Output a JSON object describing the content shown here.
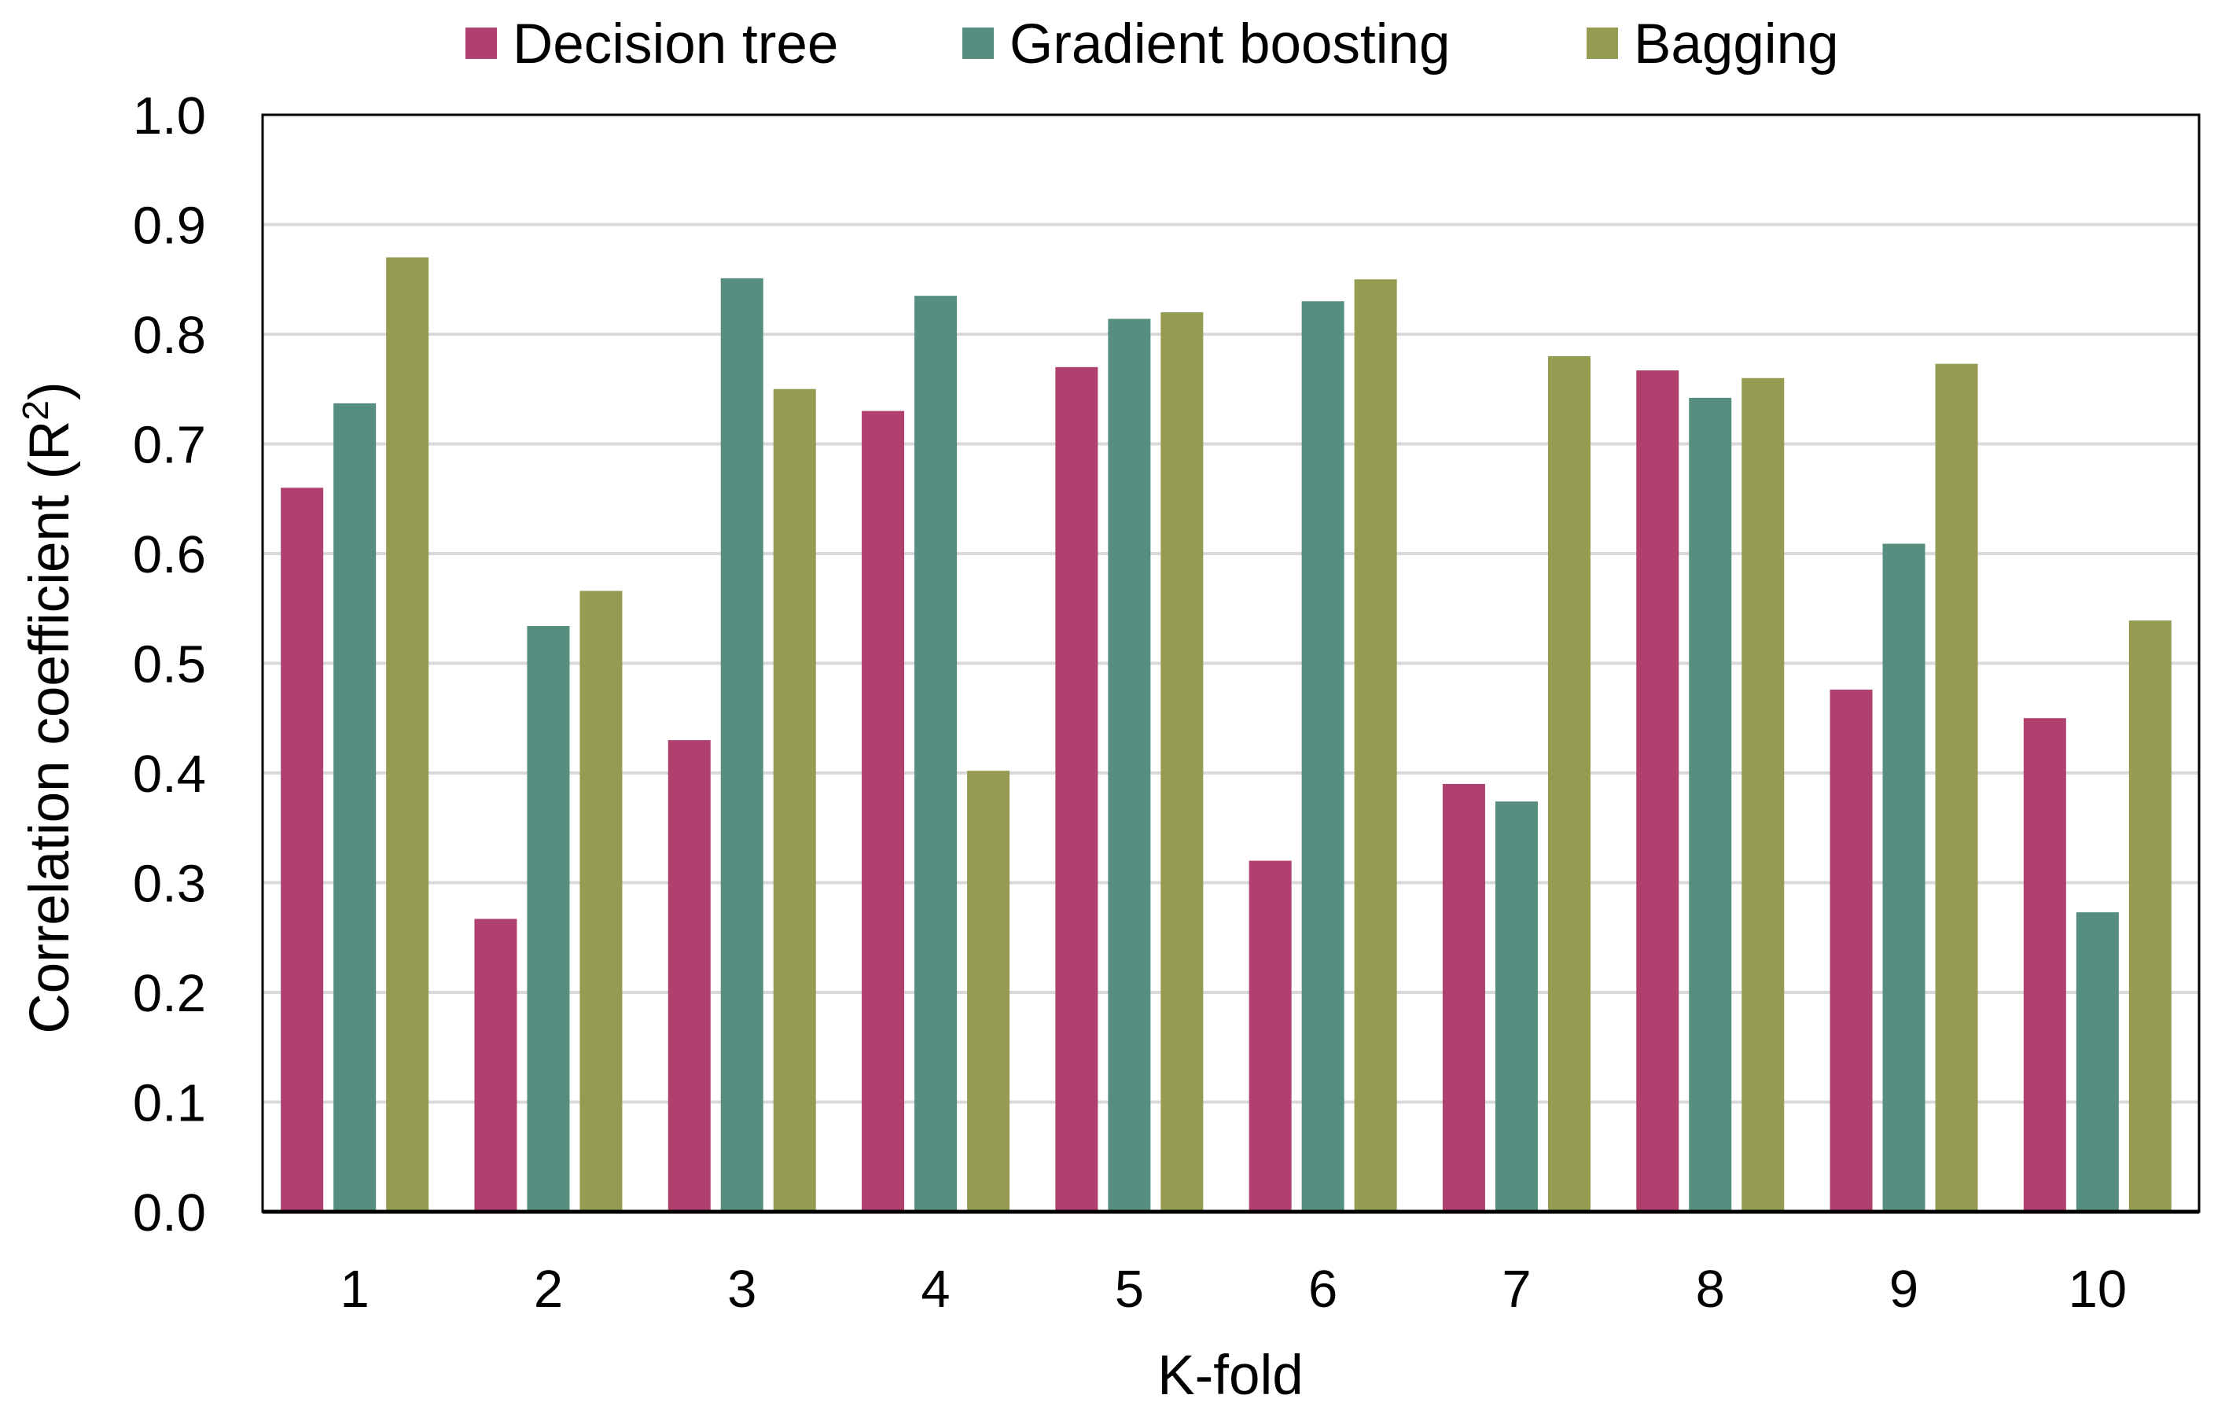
{
  "chart_data": {
    "type": "bar",
    "title": "",
    "xlabel": "K-fold",
    "ylabel_main": "Correlation coefficient (R",
    "ylabel_sup": "2",
    "ylabel_end": ")",
    "ylim": [
      0,
      1.0
    ],
    "yticks": [
      "0.0",
      "0.1",
      "0.2",
      "0.3",
      "0.4",
      "0.5",
      "0.6",
      "0.7",
      "0.8",
      "0.9",
      "1.0"
    ],
    "grid": true,
    "legend_position": "top-center",
    "categories": [
      "1",
      "2",
      "3",
      "4",
      "5",
      "6",
      "7",
      "8",
      "9",
      "10"
    ],
    "series": [
      {
        "name": "Decision tree",
        "color": "#B0406E",
        "values": [
          0.66,
          0.267,
          0.43,
          0.73,
          0.77,
          0.32,
          0.39,
          0.767,
          0.476,
          0.45
        ]
      },
      {
        "name": "Gradient boosting",
        "color": "#568E80",
        "values": [
          0.737,
          0.534,
          0.851,
          0.835,
          0.814,
          0.83,
          0.374,
          0.742,
          0.609,
          0.273
        ]
      },
      {
        "name": "Bagging",
        "color": "#969B52",
        "values": [
          0.87,
          0.566,
          0.75,
          0.402,
          0.82,
          0.85,
          0.78,
          0.76,
          0.773,
          0.539
        ]
      }
    ]
  }
}
